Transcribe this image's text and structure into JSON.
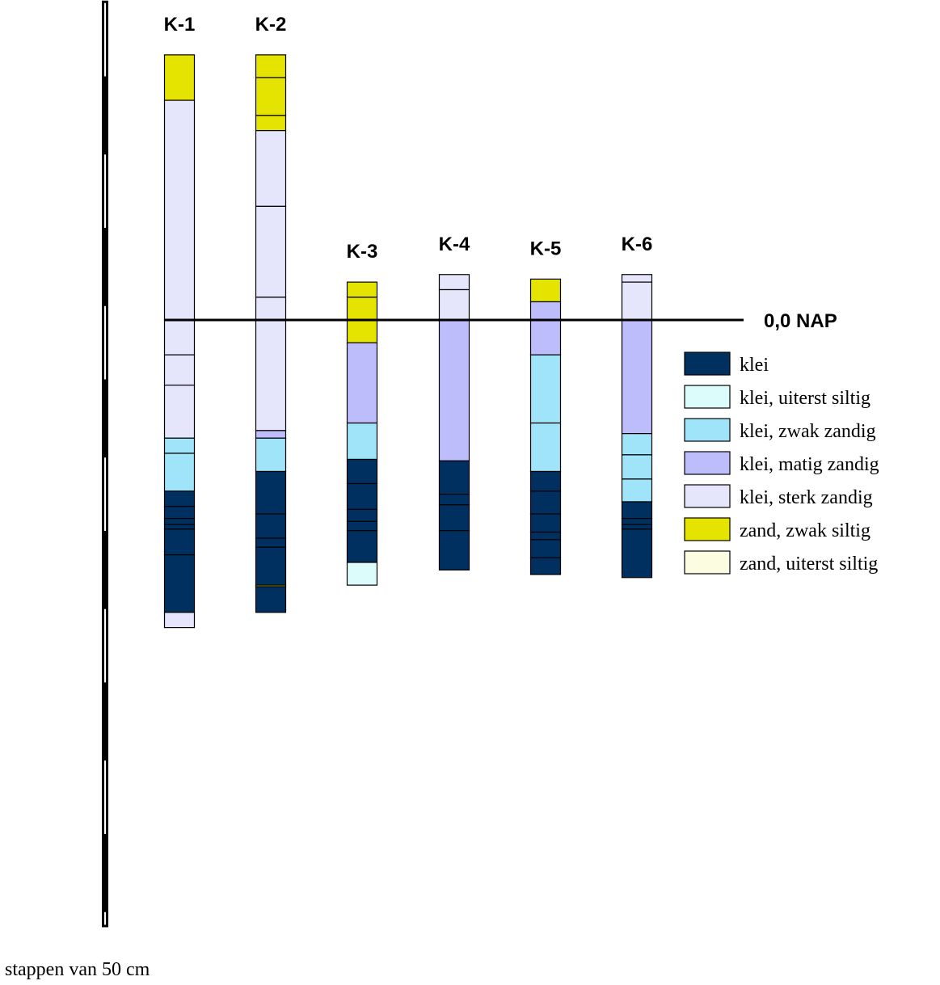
{
  "scale_caption": "stappen van 50 cm",
  "reference_label": "0,0 NAP",
  "soil_types": [
    {
      "id": "klei",
      "label": "klei",
      "color": "#00305f"
    },
    {
      "id": "klei_uiterst_siltig",
      "label": "klei, uiterst siltig",
      "color": "#dcfcfc"
    },
    {
      "id": "klei_zwak_zandig",
      "label": "klei, zwak zandig",
      "color": "#a0e4fa"
    },
    {
      "id": "klei_matig_zandig",
      "label": "klei, matig zandig",
      "color": "#bebdfb"
    },
    {
      "id": "klei_sterk_zandig",
      "label": "klei, sterk zandig",
      "color": "#e5e5fc"
    },
    {
      "id": "zand_zwak_siltig",
      "label": "zand, zwak siltig",
      "color": "#e4e400"
    },
    {
      "id": "zand_uiterst_siltig",
      "label": "zand, uiterst siltig",
      "color": "#fcfce0"
    }
  ],
  "boreholes": [
    {
      "name": "K-1",
      "layers": [
        {
          "top_cm": 175,
          "bottom_cm": 145,
          "type": "zand_zwak_siltig"
        },
        {
          "top_cm": 145,
          "bottom_cm": 0,
          "type": "klei_sterk_zandig"
        },
        {
          "top_cm": 0,
          "bottom_cm": -23,
          "type": "klei_sterk_zandig"
        },
        {
          "top_cm": -23,
          "bottom_cm": -43,
          "type": "klei_sterk_zandig"
        },
        {
          "top_cm": -43,
          "bottom_cm": -78,
          "type": "klei_sterk_zandig"
        },
        {
          "top_cm": -78,
          "bottom_cm": -88,
          "type": "klei_zwak_zandig"
        },
        {
          "top_cm": -88,
          "bottom_cm": -113,
          "type": "klei_zwak_zandig"
        },
        {
          "top_cm": -113,
          "bottom_cm": -123,
          "type": "klei"
        },
        {
          "top_cm": -123,
          "bottom_cm": -131,
          "type": "klei"
        },
        {
          "top_cm": -131,
          "bottom_cm": -135,
          "type": "klei"
        },
        {
          "top_cm": -135,
          "bottom_cm": -138,
          "type": "klei"
        },
        {
          "top_cm": -138,
          "bottom_cm": -155,
          "type": "klei"
        },
        {
          "top_cm": -155,
          "bottom_cm": -193,
          "type": "klei"
        },
        {
          "top_cm": -193,
          "bottom_cm": -203,
          "type": "klei_sterk_zandig"
        }
      ]
    },
    {
      "name": "K-2",
      "layers": [
        {
          "top_cm": 175,
          "bottom_cm": 160,
          "type": "zand_zwak_siltig"
        },
        {
          "top_cm": 160,
          "bottom_cm": 135,
          "type": "zand_zwak_siltig"
        },
        {
          "top_cm": 135,
          "bottom_cm": 125,
          "type": "zand_zwak_siltig"
        },
        {
          "top_cm": 125,
          "bottom_cm": 75,
          "type": "klei_sterk_zandig"
        },
        {
          "top_cm": 75,
          "bottom_cm": 15,
          "type": "klei_sterk_zandig"
        },
        {
          "top_cm": 15,
          "bottom_cm": -73,
          "type": "klei_sterk_zandig"
        },
        {
          "top_cm": -73,
          "bottom_cm": -78,
          "type": "klei_matig_zandig"
        },
        {
          "top_cm": -78,
          "bottom_cm": -100,
          "type": "klei_zwak_zandig"
        },
        {
          "top_cm": -100,
          "bottom_cm": -128,
          "type": "klei"
        },
        {
          "top_cm": -128,
          "bottom_cm": -144,
          "type": "klei"
        },
        {
          "top_cm": -144,
          "bottom_cm": -150,
          "type": "klei"
        },
        {
          "top_cm": -150,
          "bottom_cm": -175,
          "type": "klei"
        },
        {
          "top_cm": -175,
          "bottom_cm": -176,
          "type": "zand_zwak_siltig"
        },
        {
          "top_cm": -176,
          "bottom_cm": -193,
          "type": "klei"
        }
      ]
    },
    {
      "name": "K-3",
      "layers": [
        {
          "top_cm": 25,
          "bottom_cm": 15,
          "type": "zand_zwak_siltig"
        },
        {
          "top_cm": 15,
          "bottom_cm": -15,
          "type": "zand_zwak_siltig"
        },
        {
          "top_cm": -15,
          "bottom_cm": -68,
          "type": "klei_matig_zandig"
        },
        {
          "top_cm": -68,
          "bottom_cm": -92,
          "type": "klei_zwak_zandig"
        },
        {
          "top_cm": -92,
          "bottom_cm": -108,
          "type": "klei"
        },
        {
          "top_cm": -108,
          "bottom_cm": -125,
          "type": "klei"
        },
        {
          "top_cm": -125,
          "bottom_cm": -133,
          "type": "klei"
        },
        {
          "top_cm": -133,
          "bottom_cm": -139,
          "type": "klei"
        },
        {
          "top_cm": -139,
          "bottom_cm": -160,
          "type": "klei"
        },
        {
          "top_cm": -160,
          "bottom_cm": -175,
          "type": "klei_uiterst_siltig"
        }
      ]
    },
    {
      "name": "K-4",
      "layers": [
        {
          "top_cm": 30,
          "bottom_cm": 20,
          "type": "klei_sterk_zandig"
        },
        {
          "top_cm": 20,
          "bottom_cm": 0,
          "type": "klei_sterk_zandig"
        },
        {
          "top_cm": 0,
          "bottom_cm": -93,
          "type": "klei_matig_zandig"
        },
        {
          "top_cm": -93,
          "bottom_cm": -115,
          "type": "klei"
        },
        {
          "top_cm": -115,
          "bottom_cm": -122,
          "type": "klei"
        },
        {
          "top_cm": -122,
          "bottom_cm": -139,
          "type": "klei"
        },
        {
          "top_cm": -139,
          "bottom_cm": -165,
          "type": "klei"
        }
      ]
    },
    {
      "name": "K-5",
      "layers": [
        {
          "top_cm": 27,
          "bottom_cm": 12,
          "type": "zand_zwak_siltig"
        },
        {
          "top_cm": 12,
          "bottom_cm": -23,
          "type": "klei_matig_zandig"
        },
        {
          "top_cm": -23,
          "bottom_cm": -68,
          "type": "klei_zwak_zandig"
        },
        {
          "top_cm": -68,
          "bottom_cm": -100,
          "type": "klei_zwak_zandig"
        },
        {
          "top_cm": -100,
          "bottom_cm": -113,
          "type": "klei"
        },
        {
          "top_cm": -113,
          "bottom_cm": -128,
          "type": "klei"
        },
        {
          "top_cm": -128,
          "bottom_cm": -140,
          "type": "klei"
        },
        {
          "top_cm": -140,
          "bottom_cm": -145,
          "type": "klei"
        },
        {
          "top_cm": -145,
          "bottom_cm": -157,
          "type": "klei"
        },
        {
          "top_cm": -157,
          "bottom_cm": -168,
          "type": "klei"
        }
      ]
    },
    {
      "name": "K-6",
      "layers": [
        {
          "top_cm": 30,
          "bottom_cm": 25,
          "type": "klei_sterk_zandig"
        },
        {
          "top_cm": 25,
          "bottom_cm": 0,
          "type": "klei_sterk_zandig"
        },
        {
          "top_cm": 0,
          "bottom_cm": -75,
          "type": "klei_matig_zandig"
        },
        {
          "top_cm": -75,
          "bottom_cm": -89,
          "type": "klei_zwak_zandig"
        },
        {
          "top_cm": -89,
          "bottom_cm": -105,
          "type": "klei_zwak_zandig"
        },
        {
          "top_cm": -105,
          "bottom_cm": -120,
          "type": "klei_zwak_zandig"
        },
        {
          "top_cm": -120,
          "bottom_cm": -131,
          "type": "klei"
        },
        {
          "top_cm": -131,
          "bottom_cm": -135,
          "type": "klei"
        },
        {
          "top_cm": -135,
          "bottom_cm": -138,
          "type": "klei"
        },
        {
          "top_cm": -138,
          "bottom_cm": -170,
          "type": "klei"
        }
      ]
    }
  ]
}
